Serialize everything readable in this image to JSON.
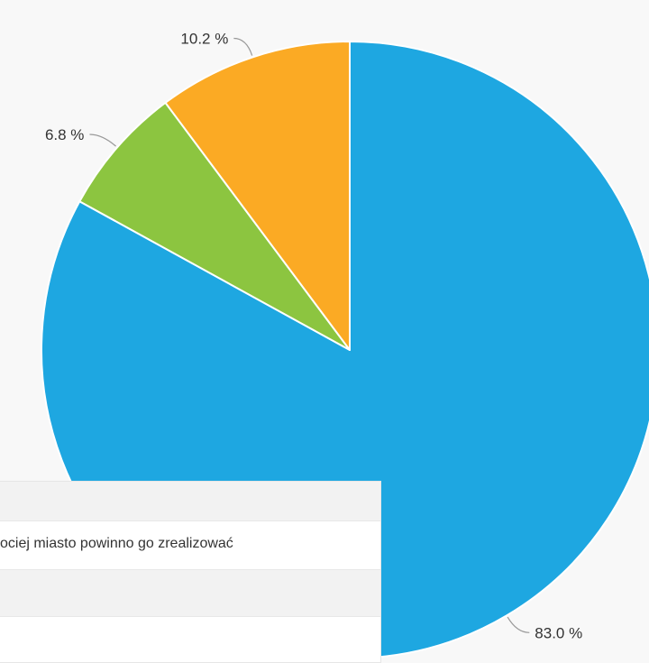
{
  "chart_data": {
    "type": "pie",
    "slices": [
      {
        "label": "83.0 %",
        "value": 83.0,
        "color": "#1ea7e1"
      },
      {
        "label": "6.8 %",
        "value": 6.8,
        "color": "#8cc540"
      },
      {
        "label": "10.2 %",
        "value": 10.2,
        "color": "#fbaa24"
      }
    ],
    "start_angle_deg": 0,
    "direction": "clockwise",
    "slice_border_color": "#ffffff",
    "legend": "none"
  },
  "tooltip": {
    "answer_text": "ociej miasto powinno go zrealizować"
  }
}
